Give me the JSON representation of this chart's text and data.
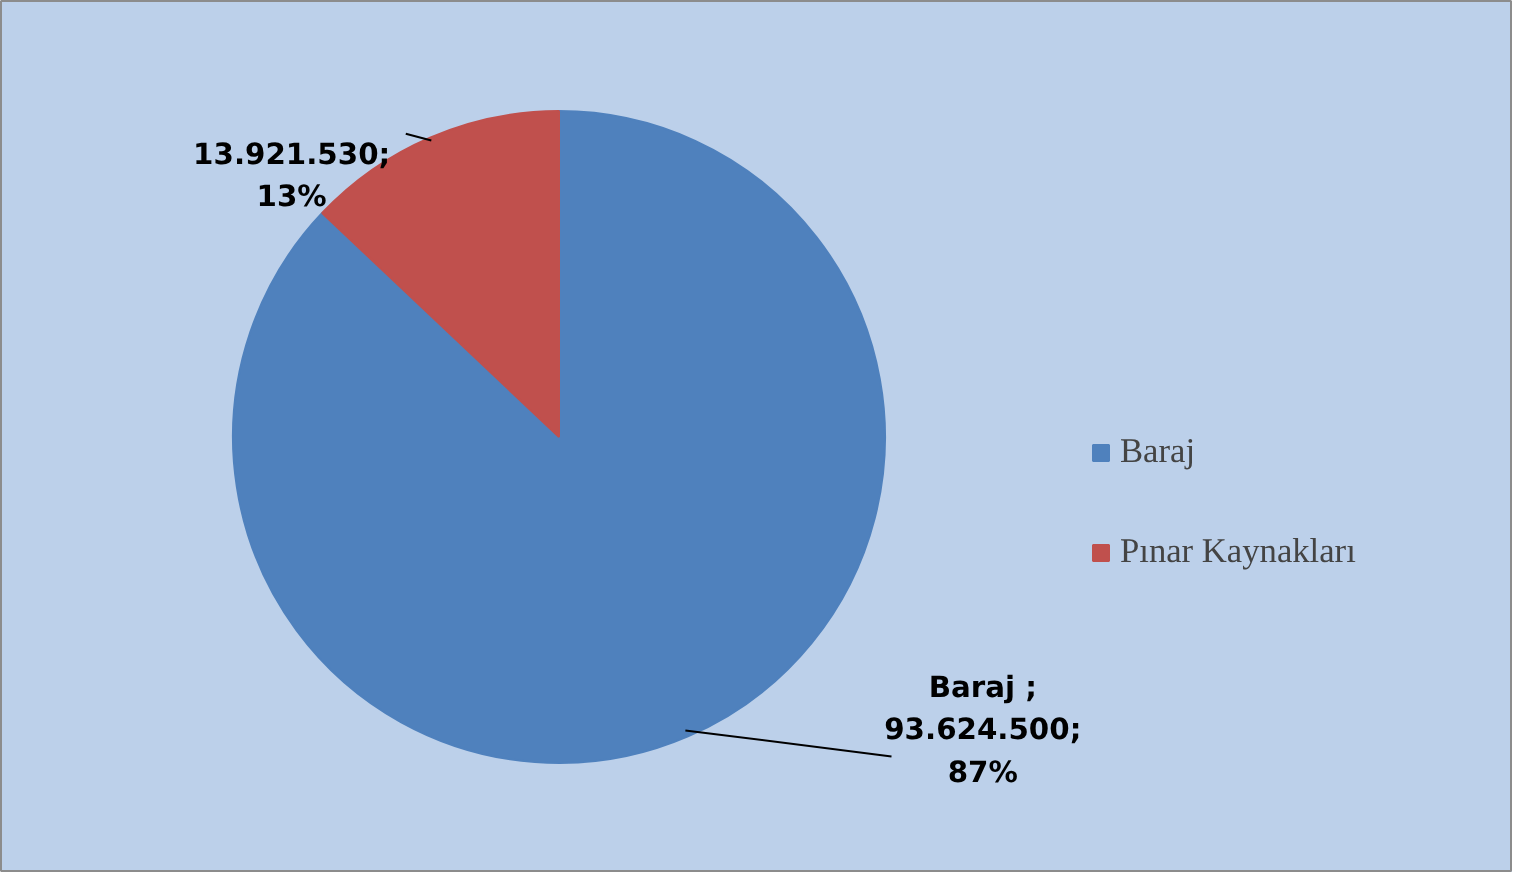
{
  "chart_data": {
    "type": "pie",
    "categories": [
      "Baraj",
      "Pınar Kaynakları"
    ],
    "values": [
      93624500,
      13921530
    ],
    "colors": [
      "#4f81bd",
      "#c0504d"
    ],
    "value_labels": [
      "Baraj ;\n93.624.500;\n87%",
      "13.921.530;\n13%"
    ],
    "legend": "right"
  }
}
